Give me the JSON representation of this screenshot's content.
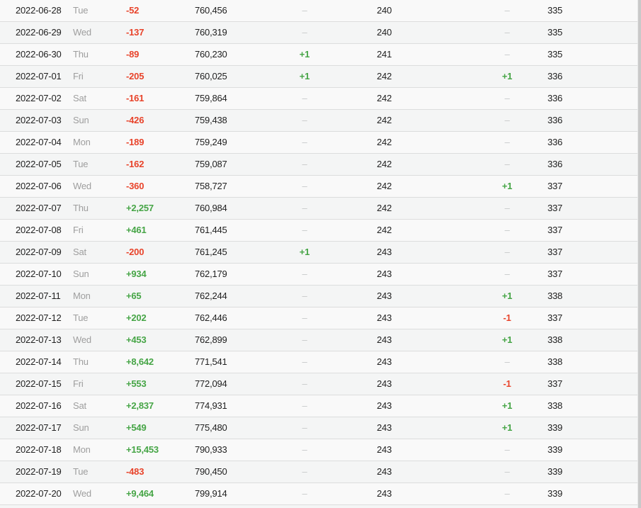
{
  "table": {
    "dash": "–",
    "colors": {
      "positive": "#46a546",
      "negative": "#e8432a",
      "dash": "#c6c8c9",
      "date_text": "#212121",
      "day_text": "#9e9e9e",
      "row_odd_bg": "#f9f9f9",
      "row_even_bg": "#f4f5f5",
      "divider": "#dcdddd",
      "scrollbar": "#c9c9c9"
    },
    "rows": [
      {
        "date": "2022-06-28",
        "day": "Tue",
        "change": "-52",
        "total": "760,456",
        "change2": "–",
        "count2": "240",
        "change3": "–",
        "count3": "335"
      },
      {
        "date": "2022-06-29",
        "day": "Wed",
        "change": "-137",
        "total": "760,319",
        "change2": "–",
        "count2": "240",
        "change3": "–",
        "count3": "335"
      },
      {
        "date": "2022-06-30",
        "day": "Thu",
        "change": "-89",
        "total": "760,230",
        "change2": "+1",
        "count2": "241",
        "change3": "–",
        "count3": "335"
      },
      {
        "date": "2022-07-01",
        "day": "Fri",
        "change": "-205",
        "total": "760,025",
        "change2": "+1",
        "count2": "242",
        "change3": "+1",
        "count3": "336"
      },
      {
        "date": "2022-07-02",
        "day": "Sat",
        "change": "-161",
        "total": "759,864",
        "change2": "–",
        "count2": "242",
        "change3": "–",
        "count3": "336"
      },
      {
        "date": "2022-07-03",
        "day": "Sun",
        "change": "-426",
        "total": "759,438",
        "change2": "–",
        "count2": "242",
        "change3": "–",
        "count3": "336"
      },
      {
        "date": "2022-07-04",
        "day": "Mon",
        "change": "-189",
        "total": "759,249",
        "change2": "–",
        "count2": "242",
        "change3": "–",
        "count3": "336"
      },
      {
        "date": "2022-07-05",
        "day": "Tue",
        "change": "-162",
        "total": "759,087",
        "change2": "–",
        "count2": "242",
        "change3": "–",
        "count3": "336"
      },
      {
        "date": "2022-07-06",
        "day": "Wed",
        "change": "-360",
        "total": "758,727",
        "change2": "–",
        "count2": "242",
        "change3": "+1",
        "count3": "337"
      },
      {
        "date": "2022-07-07",
        "day": "Thu",
        "change": "+2,257",
        "total": "760,984",
        "change2": "–",
        "count2": "242",
        "change3": "–",
        "count3": "337"
      },
      {
        "date": "2022-07-08",
        "day": "Fri",
        "change": "+461",
        "total": "761,445",
        "change2": "–",
        "count2": "242",
        "change3": "–",
        "count3": "337"
      },
      {
        "date": "2022-07-09",
        "day": "Sat",
        "change": "-200",
        "total": "761,245",
        "change2": "+1",
        "count2": "243",
        "change3": "–",
        "count3": "337"
      },
      {
        "date": "2022-07-10",
        "day": "Sun",
        "change": "+934",
        "total": "762,179",
        "change2": "–",
        "count2": "243",
        "change3": "–",
        "count3": "337"
      },
      {
        "date": "2022-07-11",
        "day": "Mon",
        "change": "+65",
        "total": "762,244",
        "change2": "–",
        "count2": "243",
        "change3": "+1",
        "count3": "338"
      },
      {
        "date": "2022-07-12",
        "day": "Tue",
        "change": "+202",
        "total": "762,446",
        "change2": "–",
        "count2": "243",
        "change3": "-1",
        "count3": "337"
      },
      {
        "date": "2022-07-13",
        "day": "Wed",
        "change": "+453",
        "total": "762,899",
        "change2": "–",
        "count2": "243",
        "change3": "+1",
        "count3": "338"
      },
      {
        "date": "2022-07-14",
        "day": "Thu",
        "change": "+8,642",
        "total": "771,541",
        "change2": "–",
        "count2": "243",
        "change3": "–",
        "count3": "338"
      },
      {
        "date": "2022-07-15",
        "day": "Fri",
        "change": "+553",
        "total": "772,094",
        "change2": "–",
        "count2": "243",
        "change3": "-1",
        "count3": "337"
      },
      {
        "date": "2022-07-16",
        "day": "Sat",
        "change": "+2,837",
        "total": "774,931",
        "change2": "–",
        "count2": "243",
        "change3": "+1",
        "count3": "338"
      },
      {
        "date": "2022-07-17",
        "day": "Sun",
        "change": "+549",
        "total": "775,480",
        "change2": "–",
        "count2": "243",
        "change3": "+1",
        "count3": "339"
      },
      {
        "date": "2022-07-18",
        "day": "Mon",
        "change": "+15,453",
        "total": "790,933",
        "change2": "–",
        "count2": "243",
        "change3": "–",
        "count3": "339"
      },
      {
        "date": "2022-07-19",
        "day": "Tue",
        "change": "-483",
        "total": "790,450",
        "change2": "–",
        "count2": "243",
        "change3": "–",
        "count3": "339"
      },
      {
        "date": "2022-07-20",
        "day": "Wed",
        "change": "+9,464",
        "total": "799,914",
        "change2": "–",
        "count2": "243",
        "change3": "–",
        "count3": "339"
      }
    ]
  }
}
